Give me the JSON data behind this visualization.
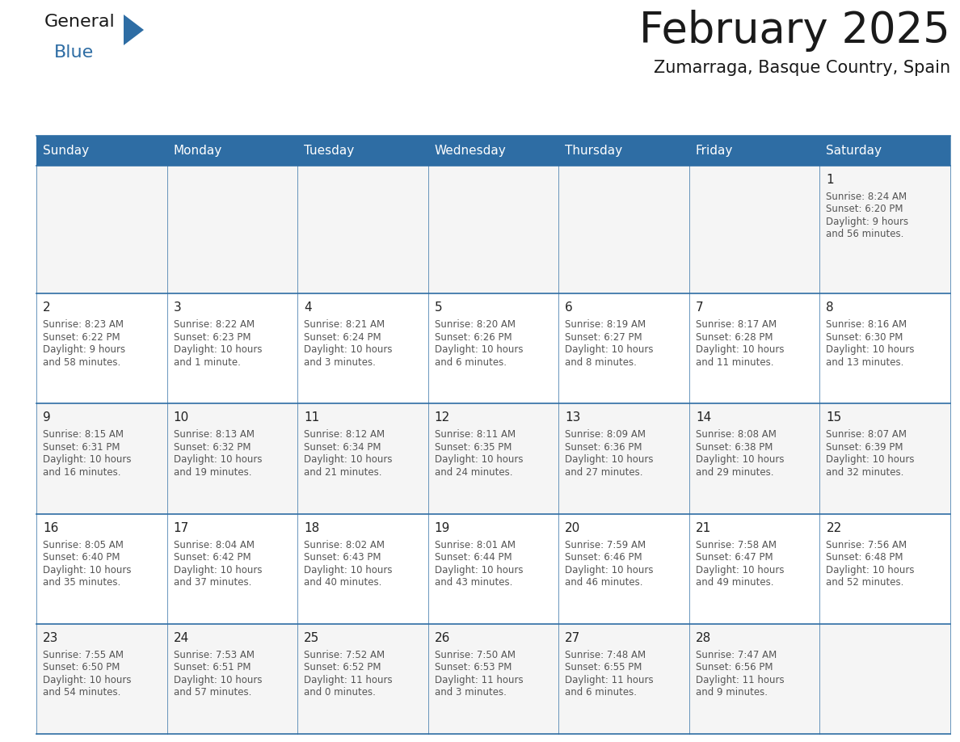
{
  "title": "February 2025",
  "subtitle": "Zumarraga, Basque Country, Spain",
  "header_bg": "#2E6DA4",
  "header_text": "#FFFFFF",
  "cell_bg_row0": "#F5F5F5",
  "cell_bg_odd": "#FFFFFF",
  "cell_bg_even": "#F5F5F5",
  "cell_border": "#2E6DA4",
  "day_headers": [
    "Sunday",
    "Monday",
    "Tuesday",
    "Wednesday",
    "Thursday",
    "Friday",
    "Saturday"
  ],
  "days_data": [
    {
      "day": 1,
      "col": 6,
      "row": 0,
      "sunrise": "8:24 AM",
      "sunset": "6:20 PM",
      "daylight": "9 hours",
      "daylight2": "and 56 minutes."
    },
    {
      "day": 2,
      "col": 0,
      "row": 1,
      "sunrise": "8:23 AM",
      "sunset": "6:22 PM",
      "daylight": "9 hours",
      "daylight2": "and 58 minutes."
    },
    {
      "day": 3,
      "col": 1,
      "row": 1,
      "sunrise": "8:22 AM",
      "sunset": "6:23 PM",
      "daylight": "10 hours",
      "daylight2": "and 1 minute."
    },
    {
      "day": 4,
      "col": 2,
      "row": 1,
      "sunrise": "8:21 AM",
      "sunset": "6:24 PM",
      "daylight": "10 hours",
      "daylight2": "and 3 minutes."
    },
    {
      "day": 5,
      "col": 3,
      "row": 1,
      "sunrise": "8:20 AM",
      "sunset": "6:26 PM",
      "daylight": "10 hours",
      "daylight2": "and 6 minutes."
    },
    {
      "day": 6,
      "col": 4,
      "row": 1,
      "sunrise": "8:19 AM",
      "sunset": "6:27 PM",
      "daylight": "10 hours",
      "daylight2": "and 8 minutes."
    },
    {
      "day": 7,
      "col": 5,
      "row": 1,
      "sunrise": "8:17 AM",
      "sunset": "6:28 PM",
      "daylight": "10 hours",
      "daylight2": "and 11 minutes."
    },
    {
      "day": 8,
      "col": 6,
      "row": 1,
      "sunrise": "8:16 AM",
      "sunset": "6:30 PM",
      "daylight": "10 hours",
      "daylight2": "and 13 minutes."
    },
    {
      "day": 9,
      "col": 0,
      "row": 2,
      "sunrise": "8:15 AM",
      "sunset": "6:31 PM",
      "daylight": "10 hours",
      "daylight2": "and 16 minutes."
    },
    {
      "day": 10,
      "col": 1,
      "row": 2,
      "sunrise": "8:13 AM",
      "sunset": "6:32 PM",
      "daylight": "10 hours",
      "daylight2": "and 19 minutes."
    },
    {
      "day": 11,
      "col": 2,
      "row": 2,
      "sunrise": "8:12 AM",
      "sunset": "6:34 PM",
      "daylight": "10 hours",
      "daylight2": "and 21 minutes."
    },
    {
      "day": 12,
      "col": 3,
      "row": 2,
      "sunrise": "8:11 AM",
      "sunset": "6:35 PM",
      "daylight": "10 hours",
      "daylight2": "and 24 minutes."
    },
    {
      "day": 13,
      "col": 4,
      "row": 2,
      "sunrise": "8:09 AM",
      "sunset": "6:36 PM",
      "daylight": "10 hours",
      "daylight2": "and 27 minutes."
    },
    {
      "day": 14,
      "col": 5,
      "row": 2,
      "sunrise": "8:08 AM",
      "sunset": "6:38 PM",
      "daylight": "10 hours",
      "daylight2": "and 29 minutes."
    },
    {
      "day": 15,
      "col": 6,
      "row": 2,
      "sunrise": "8:07 AM",
      "sunset": "6:39 PM",
      "daylight": "10 hours",
      "daylight2": "and 32 minutes."
    },
    {
      "day": 16,
      "col": 0,
      "row": 3,
      "sunrise": "8:05 AM",
      "sunset": "6:40 PM",
      "daylight": "10 hours",
      "daylight2": "and 35 minutes."
    },
    {
      "day": 17,
      "col": 1,
      "row": 3,
      "sunrise": "8:04 AM",
      "sunset": "6:42 PM",
      "daylight": "10 hours",
      "daylight2": "and 37 minutes."
    },
    {
      "day": 18,
      "col": 2,
      "row": 3,
      "sunrise": "8:02 AM",
      "sunset": "6:43 PM",
      "daylight": "10 hours",
      "daylight2": "and 40 minutes."
    },
    {
      "day": 19,
      "col": 3,
      "row": 3,
      "sunrise": "8:01 AM",
      "sunset": "6:44 PM",
      "daylight": "10 hours",
      "daylight2": "and 43 minutes."
    },
    {
      "day": 20,
      "col": 4,
      "row": 3,
      "sunrise": "7:59 AM",
      "sunset": "6:46 PM",
      "daylight": "10 hours",
      "daylight2": "and 46 minutes."
    },
    {
      "day": 21,
      "col": 5,
      "row": 3,
      "sunrise": "7:58 AM",
      "sunset": "6:47 PM",
      "daylight": "10 hours",
      "daylight2": "and 49 minutes."
    },
    {
      "day": 22,
      "col": 6,
      "row": 3,
      "sunrise": "7:56 AM",
      "sunset": "6:48 PM",
      "daylight": "10 hours",
      "daylight2": "and 52 minutes."
    },
    {
      "day": 23,
      "col": 0,
      "row": 4,
      "sunrise": "7:55 AM",
      "sunset": "6:50 PM",
      "daylight": "10 hours",
      "daylight2": "and 54 minutes."
    },
    {
      "day": 24,
      "col": 1,
      "row": 4,
      "sunrise": "7:53 AM",
      "sunset": "6:51 PM",
      "daylight": "10 hours",
      "daylight2": "and 57 minutes."
    },
    {
      "day": 25,
      "col": 2,
      "row": 4,
      "sunrise": "7:52 AM",
      "sunset": "6:52 PM",
      "daylight": "11 hours",
      "daylight2": "and 0 minutes."
    },
    {
      "day": 26,
      "col": 3,
      "row": 4,
      "sunrise": "7:50 AM",
      "sunset": "6:53 PM",
      "daylight": "11 hours",
      "daylight2": "and 3 minutes."
    },
    {
      "day": 27,
      "col": 4,
      "row": 4,
      "sunrise": "7:48 AM",
      "sunset": "6:55 PM",
      "daylight": "11 hours",
      "daylight2": "and 6 minutes."
    },
    {
      "day": 28,
      "col": 5,
      "row": 4,
      "sunrise": "7:47 AM",
      "sunset": "6:56 PM",
      "daylight": "11 hours",
      "daylight2": "and 9 minutes."
    }
  ],
  "num_rows": 5,
  "logo_text_general": "General",
  "logo_text_blue": "Blue",
  "logo_color_general": "#1a1a1a",
  "logo_color_blue": "#2E6DA4",
  "logo_triangle_color": "#2E6DA4",
  "title_fontsize": 38,
  "subtitle_fontsize": 15,
  "day_header_fontsize": 11,
  "day_num_fontsize": 11,
  "cell_text_fontsize": 8.5
}
